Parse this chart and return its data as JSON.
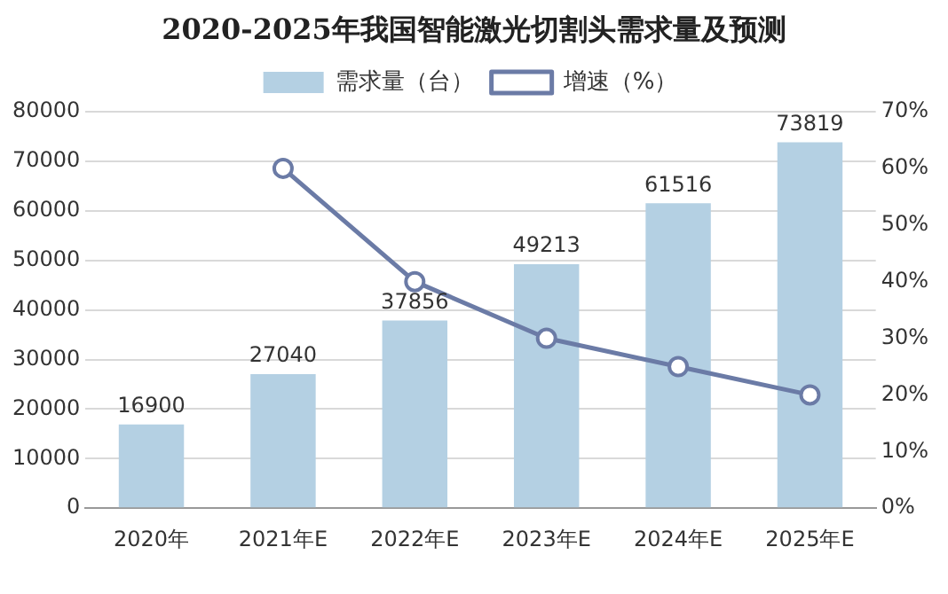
{
  "chart_data": {
    "type": "bar",
    "title": "2020-2025年我国智能激光切割头需求量及预测",
    "categories": [
      "2020年",
      "2021年E",
      "2022年E",
      "2023年E",
      "2024年E",
      "2025年E"
    ],
    "series": [
      {
        "name": "需求量（台）",
        "color": "#b4d0e3",
        "values": [
          16900,
          27040,
          37856,
          49213,
          61516,
          73819
        ],
        "value_labels": [
          "16900",
          "27040",
          "37856",
          "49213",
          "61516",
          "73819"
        ]
      },
      {
        "name": "增速（%）",
        "type": "line",
        "axis": "y2",
        "color": "#6b7ba6",
        "values": [
          null,
          60,
          40,
          30,
          25,
          20
        ]
      }
    ],
    "ylim": [
      0,
      80000
    ],
    "yticks": [
      0,
      10000,
      20000,
      30000,
      40000,
      50000,
      60000,
      70000,
      80000
    ],
    "y2lim": [
      0,
      70
    ],
    "y2ticks": [
      {
        "value": 0,
        "label": "0%"
      },
      {
        "value": 10,
        "label": "10%"
      },
      {
        "value": 20,
        "label": "20%"
      },
      {
        "value": 30,
        "label": "30%"
      },
      {
        "value": 40,
        "label": "40%"
      },
      {
        "value": 50,
        "label": "50%"
      },
      {
        "value": 60,
        "label": "60%"
      },
      {
        "value": 70,
        "label": "70%"
      }
    ],
    "grid": "y",
    "legend": "top",
    "marker": "circle",
    "line_style": "solid"
  }
}
